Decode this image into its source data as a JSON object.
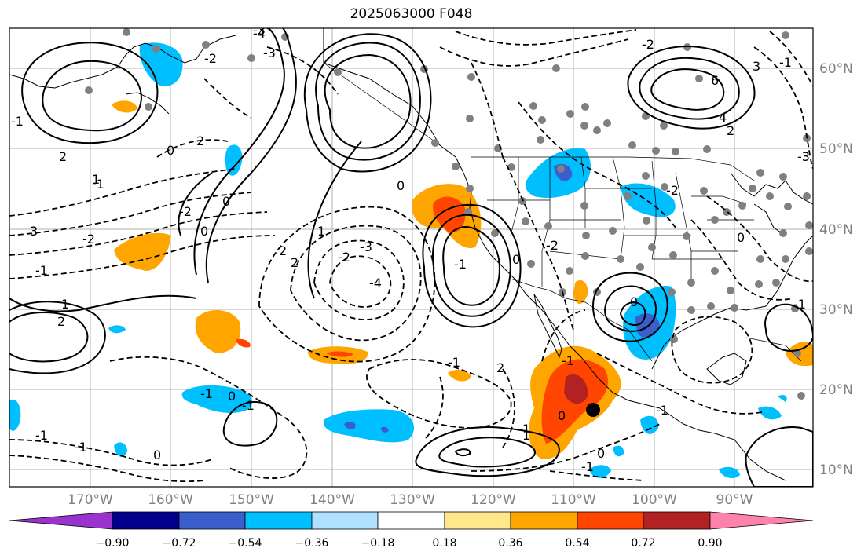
{
  "title": "2025063000 F048",
  "longitude_labels": [
    "170°W",
    "160°W",
    "150°W",
    "140°W",
    "130°W",
    "120°W",
    "110°W",
    "100°W",
    "90°W"
  ],
  "latitude_labels": [
    "60°N",
    "50°N",
    "40°N",
    "30°N",
    "20°N",
    "10°N"
  ],
  "colorbar": {
    "tick_labels": [
      "−0.90",
      "−0.72",
      "−0.54",
      "−0.36",
      "−0.18",
      "0.18",
      "0.36",
      "0.54",
      "0.72",
      "0.90"
    ],
    "colors": [
      "#9a32cd",
      "#00008b",
      "#3a5fcd",
      "#00bfff",
      "#b0e2ff",
      "#ffffff",
      "#ffe78a",
      "#ffa500",
      "#ff4500",
      "#b22222",
      "#ff82ab"
    ]
  },
  "contour_labels": [
    "-4",
    "-3",
    "-2",
    "-2",
    "-1",
    "-1",
    "0",
    "0",
    "2",
    "3",
    "-3",
    "-2",
    "-2",
    "-1",
    "-1",
    "1",
    "2",
    "0",
    "-1",
    "-1",
    "1",
    "2",
    "-3",
    "0",
    "0",
    "-4",
    "6",
    "4",
    "2",
    "-1",
    "-1",
    "0",
    "-1",
    "-2",
    "-2",
    "0",
    "1",
    "2",
    "-1",
    "0",
    "0",
    "-3",
    "-1",
    "1",
    "-1",
    "0",
    "1",
    "2",
    "-2",
    "-1",
    "0",
    "-1",
    "2",
    "3"
  ],
  "marker": {
    "label": "point-of-interest",
    "color": "#000000"
  }
}
